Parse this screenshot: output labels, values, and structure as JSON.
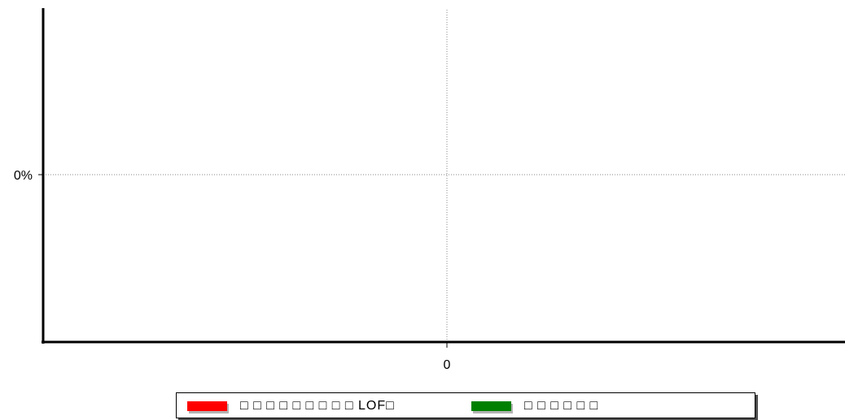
{
  "chart_data": {
    "type": "line",
    "title": "",
    "xlabel": "",
    "ylabel": "",
    "x_ticks": [
      "0"
    ],
    "y_ticks": [
      "0%"
    ],
    "grid": true,
    "legend_position": "bottom",
    "series": [
      {
        "name": "□ □ □ □ □ □ □ □ □ LOF□",
        "color": "#ff0000",
        "values": []
      },
      {
        "name": "□ □ □ □ □ □",
        "color": "#008000",
        "values": []
      }
    ]
  }
}
